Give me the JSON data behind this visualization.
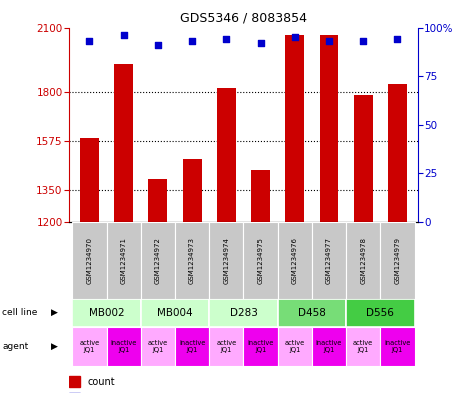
{
  "title": "GDS5346 / 8083854",
  "samples": [
    "GSM1234970",
    "GSM1234971",
    "GSM1234972",
    "GSM1234973",
    "GSM1234974",
    "GSM1234975",
    "GSM1234976",
    "GSM1234977",
    "GSM1234978",
    "GSM1234979"
  ],
  "counts": [
    1590,
    1930,
    1400,
    1490,
    1820,
    1440,
    2065,
    2065,
    1790,
    1840
  ],
  "percentiles": [
    93,
    96,
    91,
    93,
    94,
    92,
    95,
    93,
    93,
    94
  ],
  "ylim_left": [
    1200,
    2100
  ],
  "ylim_right": [
    0,
    100
  ],
  "yticks_left": [
    1200,
    1350,
    1575,
    1800,
    2100
  ],
  "yticks_right": [
    0,
    25,
    50,
    75,
    100
  ],
  "hgrid_values": [
    1350,
    1575,
    1800
  ],
  "cell_lines": [
    {
      "label": "MB002",
      "span": [
        0,
        2
      ],
      "color": "#ccffcc"
    },
    {
      "label": "MB004",
      "span": [
        2,
        4
      ],
      "color": "#ccffcc"
    },
    {
      "label": "D283",
      "span": [
        4,
        6
      ],
      "color": "#ccffcc"
    },
    {
      "label": "D458",
      "span": [
        6,
        8
      ],
      "color": "#77dd77"
    },
    {
      "label": "D556",
      "span": [
        8,
        10
      ],
      "color": "#44cc44"
    }
  ],
  "agent_active_color": "#ffaaff",
  "agent_inactive_color": "#ee00ee",
  "sample_bg_color": "#c8c8c8",
  "bar_color": "#cc0000",
  "marker_color": "#0000cc",
  "left_axis_color": "#cc0000",
  "right_axis_color": "#0000cc",
  "fig_width": 4.75,
  "fig_height": 3.93,
  "dpi": 100
}
